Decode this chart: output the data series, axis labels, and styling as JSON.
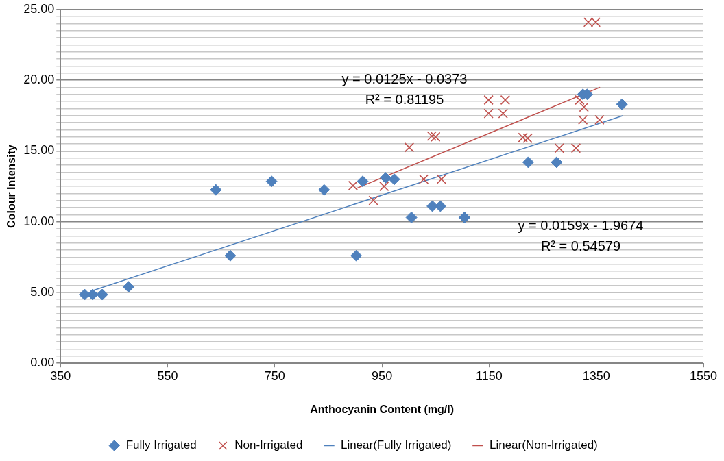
{
  "chart_data": {
    "type": "scatter",
    "xlabel": "Anthocyanin Content (mg/l)",
    "ylabel": "Colour Intensity",
    "xlim": [
      350,
      1550
    ],
    "xticks": [
      350,
      550,
      750,
      950,
      1150,
      1350,
      1550
    ],
    "ylim": [
      0,
      25
    ],
    "yticks": [
      {
        "value": 0,
        "label": "0.00"
      },
      {
        "value": 0.5,
        "label": null
      },
      {
        "value": 1,
        "label": null
      },
      {
        "value": 1.5,
        "label": null
      },
      {
        "value": 2,
        "label": null
      },
      {
        "value": 2.5,
        "label": null
      },
      {
        "value": 3,
        "label": null
      },
      {
        "value": 3.5,
        "label": null
      },
      {
        "value": 4,
        "label": null
      },
      {
        "value": 4.5,
        "label": null
      },
      {
        "value": 5,
        "label": "5.00"
      },
      {
        "value": 5.5,
        "label": null
      },
      {
        "value": 6,
        "label": null
      },
      {
        "value": 6.5,
        "label": null
      },
      {
        "value": 7,
        "label": null
      },
      {
        "value": 7.5,
        "label": null
      },
      {
        "value": 8,
        "label": null
      },
      {
        "value": 8.5,
        "label": null
      },
      {
        "value": 9,
        "label": null
      },
      {
        "value": 9.5,
        "label": null
      },
      {
        "value": 10,
        "label": "10.00"
      },
      {
        "value": 10.5,
        "label": null
      },
      {
        "value": 11,
        "label": null
      },
      {
        "value": 11.5,
        "label": null
      },
      {
        "value": 12,
        "label": null
      },
      {
        "value": 12.5,
        "label": null
      },
      {
        "value": 13,
        "label": null
      },
      {
        "value": 13.5,
        "label": null
      },
      {
        "value": 14,
        "label": null
      },
      {
        "value": 14.5,
        "label": null
      },
      {
        "value": 15,
        "label": "15.00"
      },
      {
        "value": 15.5,
        "label": null
      },
      {
        "value": 16,
        "label": null
      },
      {
        "value": 16.5,
        "label": null
      },
      {
        "value": 17,
        "label": null
      },
      {
        "value": 17.5,
        "label": null
      },
      {
        "value": 18,
        "label": null
      },
      {
        "value": 18.5,
        "label": null
      },
      {
        "value": 19,
        "label": null
      },
      {
        "value": 19.5,
        "label": null
      },
      {
        "value": 20,
        "label": "20.00"
      },
      {
        "value": 20.5,
        "label": null
      },
      {
        "value": 21,
        "label": null
      },
      {
        "value": 21.5,
        "label": null
      },
      {
        "value": 22,
        "label": null
      },
      {
        "value": 22.5,
        "label": null
      },
      {
        "value": 23,
        "label": null
      },
      {
        "value": 23.5,
        "label": null
      },
      {
        "value": 24,
        "label": null
      },
      {
        "value": 24.5,
        "label": null
      },
      {
        "value": 25,
        "label": "25.00"
      }
    ],
    "grid": "y",
    "legend": "bottom",
    "series": [
      {
        "name": "Fully Irrigated",
        "color": "#4f81bd",
        "type": "scatter",
        "marker": "diamond",
        "x": [
          395,
          410,
          428,
          477,
          640,
          667,
          744,
          842,
          902,
          914,
          957,
          973,
          1005,
          1044,
          1059,
          1104,
          1223,
          1276,
          1325,
          1333,
          1398
        ],
        "values": [
          4.85,
          4.85,
          4.85,
          5.4,
          12.25,
          7.6,
          12.85,
          12.25,
          7.6,
          12.85,
          13.1,
          13.0,
          10.3,
          11.1,
          11.1,
          10.3,
          14.2,
          14.2,
          19.0,
          19.0,
          18.3
        ]
      },
      {
        "name": "Non-Irrigated",
        "color": "#c0504d",
        "type": "scatter",
        "marker": "cross",
        "x": [
          896,
          934,
          954,
          1001,
          1043,
          1050,
          1028,
          1061,
          1149,
          1180,
          1149,
          1176,
          1213,
          1222,
          1281,
          1312,
          1319,
          1327,
          1325,
          1356,
          1335,
          1349
        ],
        "values": [
          12.55,
          11.5,
          12.5,
          15.25,
          16.05,
          16.0,
          13.0,
          13.0,
          18.6,
          18.6,
          17.65,
          17.65,
          15.95,
          15.9,
          15.2,
          15.2,
          18.6,
          18.1,
          17.2,
          17.2,
          24.1,
          24.1
        ]
      },
      {
        "name": "Linear(Fully Irrigated)",
        "color": "#4f81bd",
        "type": "line",
        "marker": "none",
        "x": [
          410,
          1400
        ],
        "values": [
          5.13,
          17.5
        ]
      },
      {
        "name": "Linear(Non-Irrigated)",
        "color": "#c0504d",
        "type": "line",
        "marker": "none",
        "x": [
          902,
          1357
        ],
        "values": [
          12.35,
          19.5
        ]
      }
    ],
    "annotations": [
      "y = 0.0125x - 0.0373",
      "R² = 0.81195",
      "y = 0.0159x - 1.9674",
      "R² = 0.54579"
    ]
  }
}
